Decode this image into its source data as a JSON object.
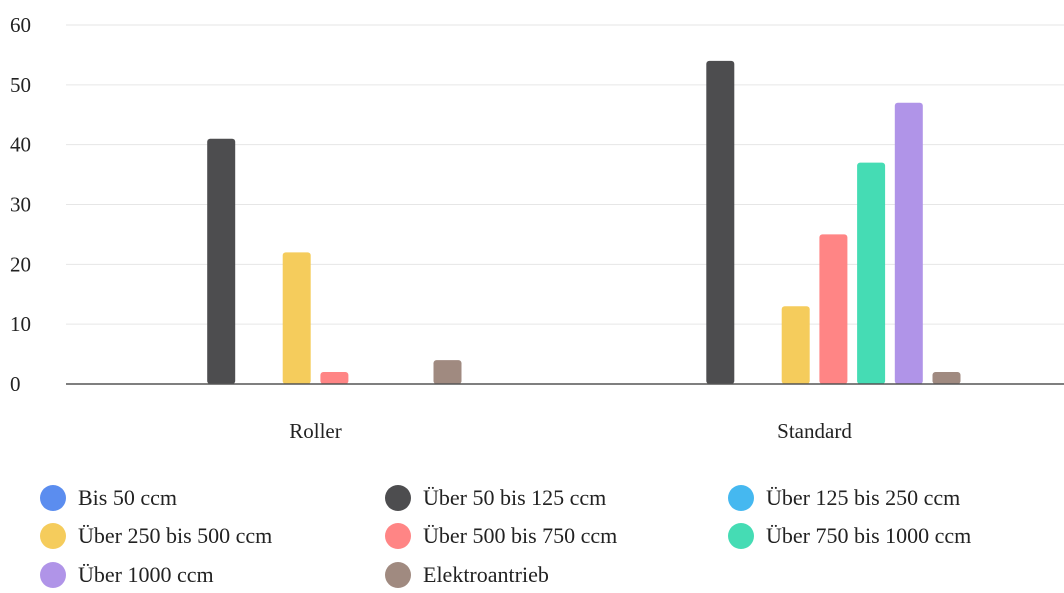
{
  "chart_data": {
    "type": "bar",
    "categories": [
      "Roller",
      "Standard"
    ],
    "ylim": [
      0,
      60
    ],
    "yticks": [
      0,
      10,
      20,
      30,
      40,
      50,
      60
    ],
    "grid": true,
    "legend_position": "bottom",
    "series": [
      {
        "name": "Bis 50 ccm",
        "color": "#5b8def",
        "values": [
          0,
          0
        ]
      },
      {
        "name": "Über 50 bis 125 ccm",
        "color": "#4d4d4f",
        "values": [
          41,
          54
        ]
      },
      {
        "name": "Über 125 bis 250 ccm",
        "color": "#45b8f0",
        "values": [
          0,
          0
        ]
      },
      {
        "name": "Über 250 bis 500 ccm",
        "color": "#f5cc5c",
        "values": [
          22,
          13
        ]
      },
      {
        "name": "Über 500 bis 750 ccm",
        "color": "#ff8585",
        "values": [
          2,
          25
        ]
      },
      {
        "name": "Über 750 bis 1000 ccm",
        "color": "#45dcb4",
        "values": [
          0,
          37
        ]
      },
      {
        "name": "Über 1000 ccm",
        "color": "#b094e8",
        "values": [
          0,
          47
        ]
      },
      {
        "name": "Elektroantrieb",
        "color": "#a08a80",
        "values": [
          4,
          2
        ]
      }
    ]
  }
}
